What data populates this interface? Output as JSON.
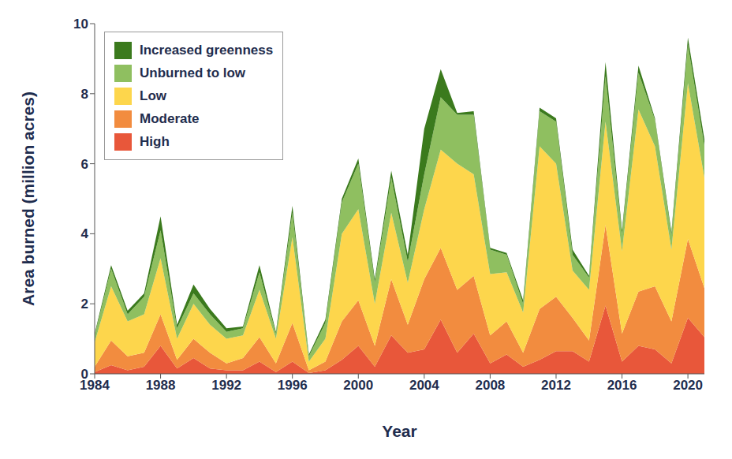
{
  "chart_data": {
    "type": "area",
    "stacked": true,
    "legend": "upper left",
    "grid": false,
    "x_label": "Year",
    "y_label": "Area burned (million acres)",
    "x": [
      1984,
      1985,
      1986,
      1987,
      1988,
      1989,
      1990,
      1991,
      1992,
      1993,
      1994,
      1995,
      1996,
      1997,
      1998,
      1999,
      2000,
      2001,
      2002,
      2003,
      2004,
      2005,
      2006,
      2007,
      2008,
      2009,
      2010,
      2011,
      2012,
      2013,
      2014,
      2015,
      2016,
      2017,
      2018,
      2019,
      2020,
      2021
    ],
    "xlim": [
      1984,
      2021
    ],
    "xticks": [
      1984,
      1988,
      1992,
      1996,
      2000,
      2004,
      2008,
      2012,
      2016,
      2020
    ],
    "ylim": [
      0,
      10
    ],
    "yticks": [
      0,
      2,
      4,
      6,
      8,
      10
    ],
    "series": [
      {
        "name": "High",
        "color": "#e8573a",
        "values": [
          0.05,
          0.25,
          0.1,
          0.2,
          0.8,
          0.15,
          0.45,
          0.15,
          0.1,
          0.1,
          0.35,
          0.05,
          0.35,
          0.02,
          0.1,
          0.4,
          0.8,
          0.2,
          1.1,
          0.6,
          0.7,
          1.55,
          0.6,
          1.15,
          0.3,
          0.55,
          0.2,
          0.4,
          0.65,
          0.65,
          0.35,
          1.95,
          0.35,
          0.8,
          0.7,
          0.3,
          1.6,
          1.05
        ]
      },
      {
        "name": "Moderate",
        "color": "#f28c3f",
        "values": [
          0.15,
          0.7,
          0.4,
          0.4,
          0.9,
          0.25,
          0.55,
          0.45,
          0.2,
          0.35,
          0.7,
          0.25,
          1.1,
          0.08,
          0.25,
          1.1,
          1.3,
          0.6,
          1.6,
          0.8,
          2.0,
          2.05,
          1.8,
          1.65,
          0.8,
          0.95,
          0.4,
          1.45,
          1.55,
          0.95,
          0.6,
          2.3,
          0.8,
          1.55,
          1.8,
          1.2,
          2.25,
          1.4
        ]
      },
      {
        "name": "Low",
        "color": "#fdd64c",
        "values": [
          0.7,
          1.55,
          1.0,
          1.1,
          1.6,
          0.6,
          1.0,
          0.8,
          0.7,
          0.65,
          1.35,
          0.7,
          2.45,
          0.25,
          0.65,
          2.5,
          2.6,
          1.2,
          1.9,
          1.2,
          2.0,
          2.8,
          3.6,
          2.9,
          1.75,
          1.4,
          1.15,
          4.65,
          3.8,
          1.35,
          1.45,
          2.95,
          2.35,
          5.2,
          4.0,
          2.05,
          4.45,
          3.15
        ]
      },
      {
        "name": "Unburned to low",
        "color": "#8fbf60",
        "values": [
          0.2,
          0.5,
          0.2,
          0.5,
          0.8,
          0.3,
          0.3,
          0.3,
          0.2,
          0.2,
          0.5,
          0.15,
          0.7,
          0.15,
          0.45,
          0.9,
          1.3,
          0.6,
          1.0,
          0.6,
          1.0,
          1.5,
          1.4,
          1.7,
          0.7,
          0.5,
          0.25,
          1.0,
          1.2,
          0.45,
          0.35,
          1.3,
          0.5,
          1.05,
          0.75,
          0.4,
          1.1,
          0.9
        ]
      },
      {
        "name": "Increased greenness",
        "color": "#3b7a1d",
        "values": [
          0.05,
          0.1,
          0.1,
          0.1,
          0.4,
          0.1,
          0.25,
          0.15,
          0.1,
          0.05,
          0.2,
          0.05,
          0.2,
          0.05,
          0.1,
          0.1,
          0.15,
          0.1,
          0.2,
          0.2,
          1.3,
          0.8,
          0.05,
          0.1,
          0.05,
          0.05,
          0.1,
          0.1,
          0.1,
          0.15,
          0.05,
          0.4,
          0.1,
          0.2,
          0.05,
          0.1,
          0.2,
          0.2
        ]
      }
    ]
  }
}
